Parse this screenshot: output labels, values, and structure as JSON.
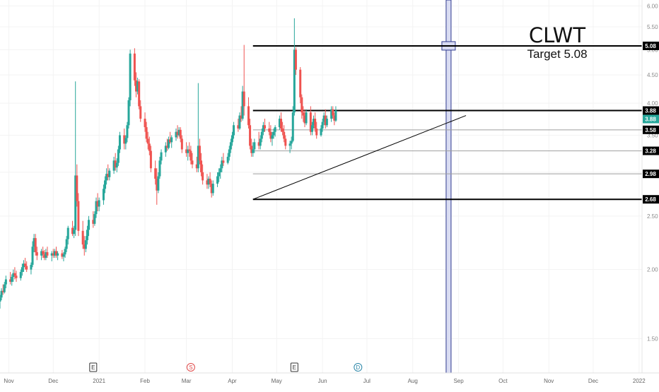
{
  "annotation": {
    "ticker": "CLWT",
    "target_text": "Target 5.08"
  },
  "colors": {
    "up": "#26a69a",
    "down": "#ef5350",
    "level_line": "#000000",
    "minor_line": "#9e9e9e",
    "vline": "#2f3a8f",
    "vfill": "#d9dcf2",
    "grid": "#f3f3f3"
  },
  "chart_data": {
    "type": "candlestick",
    "x_axis": {
      "start": "2020-10-26",
      "end": "2022-01-03",
      "ticks": [
        {
          "label": "Nov",
          "date": "2020-11-01"
        },
        {
          "label": "Dec",
          "date": "2020-12-01"
        },
        {
          "label": "2021",
          "date": "2021-01-01"
        },
        {
          "label": "Feb",
          "date": "2021-02-01"
        },
        {
          "label": "Mar",
          "date": "2021-03-01"
        },
        {
          "label": "Apr",
          "date": "2021-04-01"
        },
        {
          "label": "May",
          "date": "2021-05-01"
        },
        {
          "label": "Jun",
          "date": "2021-06-01"
        },
        {
          "label": "Jul",
          "date": "2021-07-01"
        },
        {
          "label": "Aug",
          "date": "2021-08-01"
        },
        {
          "label": "Sep",
          "date": "2021-09-01"
        },
        {
          "label": "Oct",
          "date": "2021-10-01"
        },
        {
          "label": "Nov",
          "date": "2021-11-01"
        },
        {
          "label": "Dec",
          "date": "2021-12-01"
        },
        {
          "label": "2022",
          "date": "2022-01-01"
        }
      ]
    },
    "y_axis": {
      "min": 1.3,
      "max": 6.15,
      "scale": "log",
      "ticks": [
        "1.50",
        "2.00",
        "2.50",
        "3.00",
        "3.50",
        "4.00",
        "4.50",
        "5.00",
        "5.50",
        "6.00"
      ]
    },
    "price_levels": [
      {
        "value": 5.08,
        "label": "5.08",
        "style": "thick",
        "from": "2021-04-15"
      },
      {
        "value": 3.88,
        "label": "3.88",
        "style": "thick",
        "from": "2021-04-15"
      },
      {
        "value": 3.58,
        "label": "3.58",
        "style": "thin",
        "from": "2021-04-15"
      },
      {
        "value": 3.28,
        "label": "3.28",
        "style": "thin",
        "from": "2021-04-15"
      },
      {
        "value": 2.98,
        "label": "2.98",
        "style": "thin",
        "from": "2021-04-15"
      },
      {
        "value": 2.68,
        "label": "2.68",
        "style": "thick",
        "from": "2021-04-15"
      }
    ],
    "price_labels_extra": [
      {
        "value": 3.88,
        "label": "3.88",
        "style": "last"
      }
    ],
    "trendline": {
      "from": {
        "date": "2021-04-15",
        "value": 2.68
      },
      "to": {
        "date": "2021-09-06",
        "value": 3.8
      }
    },
    "vertical_marker": {
      "date": "2021-08-25"
    },
    "events": [
      {
        "date": "2020-12-28",
        "label": "E",
        "kind": "earnings"
      },
      {
        "date": "2021-03-04",
        "label": "S",
        "kind": "split"
      },
      {
        "date": "2021-05-13",
        "label": "E",
        "kind": "earnings"
      },
      {
        "date": "2021-06-25",
        "label": "D",
        "kind": "dividend"
      }
    ],
    "candles_start": "2020-10-26",
    "candles": [
      [
        1.75,
        1.8,
        1.7,
        1.78
      ],
      [
        1.78,
        1.85,
        1.76,
        1.83
      ],
      [
        1.83,
        1.88,
        1.8,
        1.82
      ],
      [
        1.82,
        1.9,
        1.81,
        1.88
      ],
      [
        1.88,
        1.95,
        1.85,
        1.92
      ],
      [
        1.92,
        1.98,
        1.88,
        1.9
      ],
      [
        1.9,
        1.96,
        1.87,
        1.94
      ],
      [
        1.94,
        2.0,
        1.9,
        1.97
      ],
      [
        1.97,
        2.02,
        1.92,
        1.95
      ],
      [
        1.95,
        1.99,
        1.9,
        1.93
      ],
      [
        1.93,
        2.0,
        1.91,
        1.98
      ],
      [
        1.98,
        2.05,
        1.95,
        2.02
      ],
      [
        2.02,
        2.08,
        1.98,
        2.05
      ],
      [
        2.05,
        2.1,
        2.0,
        2.03
      ],
      [
        2.03,
        2.07,
        1.98,
        2.0
      ],
      [
        2.0,
        2.06,
        1.96,
        2.04
      ],
      [
        2.04,
        2.25,
        2.02,
        2.2
      ],
      [
        2.2,
        2.32,
        2.15,
        2.28
      ],
      [
        2.28,
        2.32,
        2.12,
        2.15
      ],
      [
        2.15,
        2.2,
        2.08,
        2.12
      ],
      [
        2.12,
        2.18,
        2.08,
        2.16
      ],
      [
        2.16,
        2.2,
        2.1,
        2.13
      ],
      [
        2.13,
        2.17,
        2.08,
        2.1
      ],
      [
        2.1,
        2.18,
        2.08,
        2.15
      ],
      [
        2.15,
        2.2,
        2.1,
        2.12
      ],
      [
        2.12,
        2.16,
        2.07,
        2.14
      ],
      [
        2.14,
        2.18,
        2.1,
        2.12
      ],
      [
        2.12,
        2.18,
        2.1,
        2.16
      ],
      [
        2.16,
        2.2,
        2.1,
        2.12
      ],
      [
        2.12,
        2.16,
        2.08,
        2.14
      ],
      [
        2.14,
        2.17,
        2.09,
        2.11
      ],
      [
        2.11,
        2.15,
        2.07,
        2.13
      ],
      [
        2.13,
        2.2,
        2.1,
        2.18
      ],
      [
        2.18,
        2.3,
        2.15,
        2.27
      ],
      [
        2.27,
        2.4,
        2.22,
        2.38
      ],
      [
        2.38,
        2.45,
        2.3,
        2.32
      ],
      [
        2.32,
        2.4,
        2.28,
        2.36
      ],
      [
        2.36,
        4.38,
        2.3,
        2.96
      ],
      [
        2.96,
        3.1,
        2.6,
        2.66
      ],
      [
        2.66,
        2.75,
        2.3,
        2.35
      ],
      [
        2.35,
        2.45,
        2.18,
        2.22
      ],
      [
        2.22,
        2.3,
        2.12,
        2.18
      ],
      [
        2.18,
        2.3,
        2.15,
        2.26
      ],
      [
        2.26,
        2.4,
        2.22,
        2.36
      ],
      [
        2.36,
        2.5,
        2.3,
        2.46
      ],
      [
        2.46,
        2.55,
        2.38,
        2.42
      ],
      [
        2.42,
        2.55,
        2.4,
        2.52
      ],
      [
        2.52,
        2.7,
        2.48,
        2.66
      ],
      [
        2.66,
        2.75,
        2.55,
        2.6
      ],
      [
        2.6,
        2.7,
        2.55,
        2.67
      ],
      [
        2.67,
        2.85,
        2.62,
        2.8
      ],
      [
        2.8,
        2.95,
        2.75,
        2.9
      ],
      [
        2.9,
        3.05,
        2.85,
        2.98
      ],
      [
        2.98,
        3.1,
        2.9,
        2.94
      ],
      [
        2.94,
        3.05,
        2.9,
        3.02
      ],
      [
        3.02,
        3.2,
        2.98,
        3.15
      ],
      [
        3.15,
        3.25,
        3.02,
        3.06
      ],
      [
        3.06,
        3.18,
        3.0,
        3.12
      ],
      [
        3.12,
        3.35,
        3.08,
        3.3
      ],
      [
        3.3,
        3.55,
        3.25,
        3.5
      ],
      [
        3.5,
        3.6,
        3.3,
        3.38
      ],
      [
        3.38,
        3.5,
        3.3,
        3.46
      ],
      [
        3.46,
        3.7,
        3.4,
        3.65
      ],
      [
        3.65,
        4.1,
        3.6,
        4.05
      ],
      [
        4.05,
        5.0,
        3.95,
        4.92
      ],
      [
        4.92,
        5.03,
        4.3,
        4.4
      ],
      [
        4.4,
        4.55,
        4.1,
        4.2
      ],
      [
        4.2,
        4.45,
        4.15,
        4.38
      ],
      [
        4.38,
        4.42,
        3.9,
        3.95
      ],
      [
        3.95,
        4.05,
        3.7,
        3.75
      ],
      [
        3.75,
        3.85,
        3.55,
        3.62
      ],
      [
        3.62,
        3.7,
        3.4,
        3.45
      ],
      [
        3.45,
        3.55,
        3.3,
        3.38
      ],
      [
        3.38,
        3.48,
        3.22,
        3.28
      ],
      [
        3.28,
        3.35,
        3.0,
        3.05
      ],
      [
        3.05,
        3.15,
        2.85,
        2.92
      ],
      [
        2.92,
        3.05,
        2.62,
        2.78
      ],
      [
        2.78,
        3.0,
        2.75,
        2.95
      ],
      [
        2.95,
        3.2,
        2.92,
        3.15
      ],
      [
        3.15,
        3.3,
        3.1,
        3.26
      ],
      [
        3.26,
        3.4,
        3.2,
        3.35
      ],
      [
        3.35,
        3.45,
        3.28,
        3.32
      ],
      [
        3.32,
        3.48,
        3.3,
        3.44
      ],
      [
        3.44,
        3.55,
        3.38,
        3.4
      ],
      [
        3.4,
        3.5,
        3.32,
        3.47
      ],
      [
        3.47,
        3.6,
        3.42,
        3.55
      ],
      [
        3.55,
        3.65,
        3.45,
        3.5
      ],
      [
        3.5,
        3.62,
        3.48,
        3.58
      ],
      [
        3.58,
        3.62,
        3.4,
        3.45
      ],
      [
        3.45,
        3.5,
        3.25,
        3.3
      ],
      [
        3.3,
        3.4,
        3.2,
        3.25
      ],
      [
        3.25,
        3.35,
        3.15,
        3.3
      ],
      [
        3.3,
        3.4,
        3.2,
        3.28
      ],
      [
        3.28,
        3.35,
        3.1,
        3.15
      ],
      [
        3.15,
        3.25,
        3.05,
        3.1
      ],
      [
        3.1,
        3.2,
        3.0,
        3.05
      ],
      [
        3.05,
        4.35,
        3.0,
        3.35
      ],
      [
        3.35,
        3.45,
        3.1,
        3.15
      ],
      [
        3.15,
        3.25,
        2.95,
        3.0
      ],
      [
        3.0,
        3.1,
        2.85,
        2.9
      ],
      [
        2.9,
        2.98,
        2.8,
        2.85
      ],
      [
        2.85,
        2.95,
        2.8,
        2.92
      ],
      [
        2.92,
        3.0,
        2.82,
        2.86
      ],
      [
        2.86,
        2.9,
        2.7,
        2.75
      ],
      [
        2.75,
        2.9,
        2.72,
        2.86
      ],
      [
        2.86,
        3.0,
        2.82,
        2.95
      ],
      [
        2.95,
        3.05,
        2.88,
        3.0
      ],
      [
        3.0,
        3.1,
        2.92,
        3.05
      ],
      [
        3.05,
        3.2,
        3.0,
        3.15
      ],
      [
        3.15,
        3.25,
        3.08,
        3.12
      ],
      [
        3.12,
        3.25,
        3.1,
        3.2
      ],
      [
        3.2,
        3.35,
        3.15,
        3.3
      ],
      [
        3.3,
        3.45,
        3.25,
        3.4
      ],
      [
        3.4,
        3.55,
        3.35,
        3.5
      ],
      [
        3.5,
        3.7,
        3.45,
        3.65
      ],
      [
        3.65,
        3.75,
        3.55,
        3.6
      ],
      [
        3.6,
        3.85,
        3.58,
        3.8
      ],
      [
        3.8,
        3.95,
        3.7,
        3.75
      ],
      [
        3.75,
        4.3,
        3.72,
        4.2
      ],
      [
        4.2,
        5.1,
        3.8,
        3.95
      ],
      [
        3.95,
        4.1,
        3.6,
        3.65
      ],
      [
        3.65,
        3.75,
        3.3,
        3.35
      ],
      [
        3.35,
        3.45,
        3.2,
        3.25
      ],
      [
        3.25,
        3.4,
        3.2,
        3.3
      ],
      [
        3.3,
        3.45,
        3.25,
        3.4
      ],
      [
        3.4,
        3.55,
        3.3,
        3.35
      ],
      [
        3.35,
        3.5,
        3.3,
        3.45
      ],
      [
        3.45,
        3.6,
        3.4,
        3.55
      ],
      [
        3.55,
        3.7,
        3.5,
        3.65
      ],
      [
        3.65,
        3.75,
        3.55,
        3.6
      ],
      [
        3.6,
        3.7,
        3.5,
        3.55
      ],
      [
        3.55,
        3.65,
        3.4,
        3.45
      ],
      [
        3.45,
        3.55,
        3.35,
        3.5
      ],
      [
        3.5,
        3.6,
        3.45,
        3.55
      ],
      [
        3.55,
        3.65,
        3.48,
        3.62
      ],
      [
        3.62,
        3.8,
        3.58,
        3.75
      ],
      [
        3.75,
        3.85,
        3.55,
        3.6
      ],
      [
        3.6,
        3.7,
        3.5,
        3.55
      ],
      [
        3.55,
        3.65,
        3.4,
        3.45
      ],
      [
        3.45,
        3.5,
        3.3,
        3.35
      ],
      [
        3.35,
        3.42,
        3.25,
        3.38
      ],
      [
        3.38,
        3.48,
        3.3,
        3.42
      ],
      [
        3.42,
        3.95,
        3.4,
        3.85
      ],
      [
        3.85,
        5.7,
        3.8,
        5.0
      ],
      [
        5.0,
        5.05,
        4.5,
        4.6
      ],
      [
        4.6,
        4.65,
        4.0,
        4.1
      ],
      [
        4.1,
        4.15,
        3.75,
        3.85
      ],
      [
        3.85,
        3.95,
        3.7,
        3.8
      ],
      [
        3.8,
        3.9,
        3.62,
        3.68
      ],
      [
        3.68,
        3.9,
        3.65,
        3.85
      ],
      [
        3.85,
        3.95,
        3.5,
        3.55
      ],
      [
        3.55,
        3.7,
        3.5,
        3.65
      ],
      [
        3.65,
        3.8,
        3.6,
        3.75
      ],
      [
        3.75,
        3.85,
        3.55,
        3.6
      ],
      [
        3.6,
        3.7,
        3.45,
        3.5
      ],
      [
        3.5,
        3.65,
        3.48,
        3.6
      ],
      [
        3.6,
        3.75,
        3.55,
        3.7
      ],
      [
        3.7,
        3.85,
        3.65,
        3.8
      ],
      [
        3.8,
        3.9,
        3.6,
        3.65
      ],
      [
        3.65,
        3.8,
        3.62,
        3.75
      ],
      [
        3.75,
        3.95,
        3.7,
        3.9
      ],
      [
        3.9,
        3.95,
        3.75,
        3.8
      ],
      [
        3.8,
        3.85,
        3.65,
        3.72
      ],
      [
        3.72,
        3.95,
        3.7,
        3.88
      ]
    ]
  }
}
